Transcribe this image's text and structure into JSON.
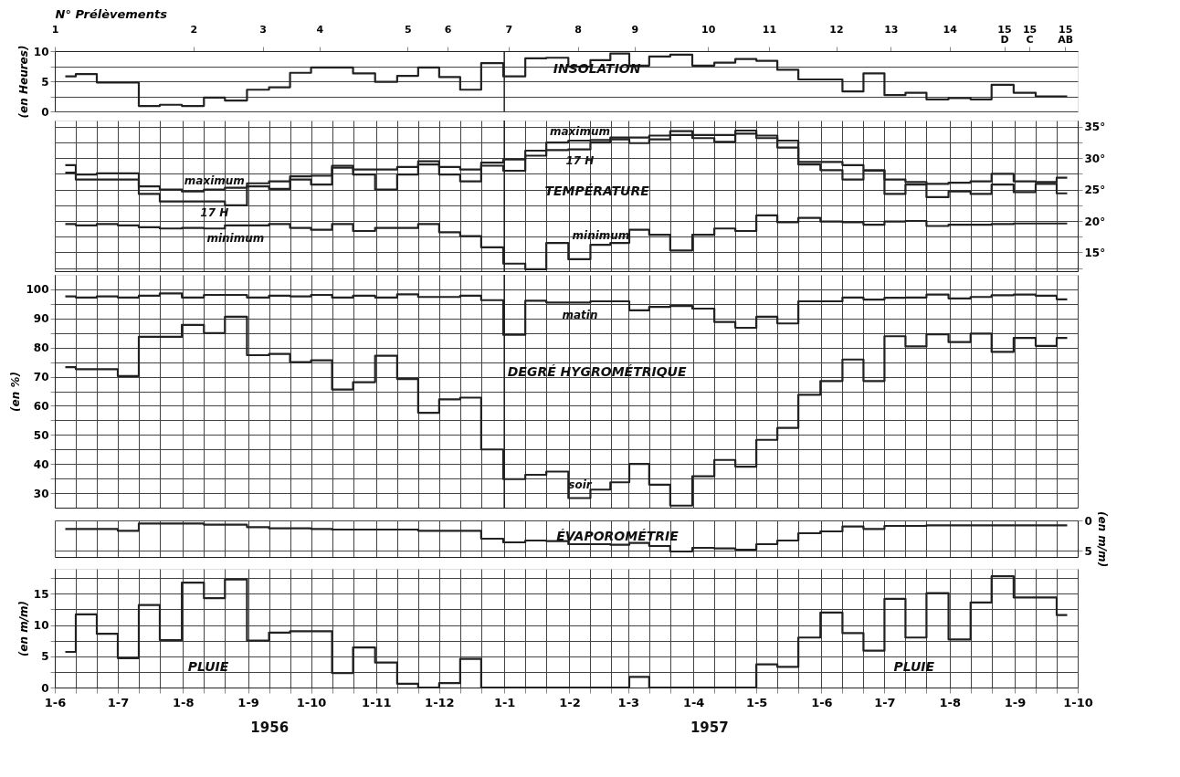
{
  "chart_data": [
    {
      "type": "step",
      "title": "INSOLATION",
      "ylabel": "(en Heures)",
      "xlim": [
        "1956-06-01",
        "1957-10-01"
      ],
      "x2label": "N° Prélèvements",
      "x2lim": [
        "1956-06-01",
        "1957-10-01"
      ],
      "x2ticks": [
        {
          "value": "1956-06-01",
          "label": "1"
        },
        {
          "value": "1956-08-06",
          "label": "2"
        },
        {
          "value": "1956-09-08",
          "label": "3"
        },
        {
          "value": "1956-10-05",
          "label": "4"
        },
        {
          "value": "1956-11-16",
          "label": "5"
        },
        {
          "value": "1956-12-05",
          "label": "6"
        },
        {
          "value": "1957-01-03",
          "label": "7"
        },
        {
          "value": "1957-02-05",
          "label": "8"
        },
        {
          "value": "1957-03-04",
          "label": "9"
        },
        {
          "value": "1957-04-08",
          "label": "10"
        },
        {
          "value": "1957-05-07",
          "label": "11"
        },
        {
          "value": "1957-06-08",
          "label": "12"
        },
        {
          "value": "1957-07-04",
          "label": "13"
        },
        {
          "value": "1957-08-01",
          "label": "14"
        },
        {
          "value": "1957-08-27",
          "label": "15 D"
        },
        {
          "value": "1957-09-08",
          "label": "15 C"
        },
        {
          "value": "1957-09-25",
          "label": "15 AB"
        }
      ],
      "ylim": [
        0,
        10
      ],
      "yticks": [
        0,
        {
          "value": 2.5,
          "label": null
        },
        5,
        {
          "value": 7.5,
          "label": null
        },
        10
      ],
      "tick_labels": "y",
      "grid": "y",
      "x": [
        "1956-06-06",
        "1956-06-16",
        "1956-06-26",
        "1956-07-06",
        "1956-07-16",
        "1956-07-26",
        "1956-08-06",
        "1956-08-16",
        "1956-08-26",
        "1956-09-06",
        "1956-09-16",
        "1956-09-26",
        "1956-10-06",
        "1956-10-16",
        "1956-10-26",
        "1956-11-06",
        "1956-11-16",
        "1956-11-26",
        "1956-12-06",
        "1956-12-16",
        "1956-12-26",
        "1957-01-06",
        "1957-01-16",
        "1957-01-26",
        "1957-02-06",
        "1957-02-16",
        "1957-02-25",
        "1957-03-06",
        "1957-03-16",
        "1957-03-26",
        "1957-04-06",
        "1957-04-16",
        "1957-04-26",
        "1957-05-06",
        "1957-05-16",
        "1957-05-26",
        "1957-06-06",
        "1957-06-16",
        "1957-06-26",
        "1957-07-06",
        "1957-07-16",
        "1957-07-26",
        "1957-08-06",
        "1957-08-16",
        "1957-08-26",
        "1957-09-06",
        "1957-09-16",
        "1957-09-26"
      ],
      "series": [
        {
          "color": "#222222",
          "values": [
            5.8,
            6.2,
            4.8,
            4.8,
            0.9,
            1.1,
            0.9,
            2.3,
            1.8,
            3.6,
            4.0,
            6.4,
            7.3,
            7.3,
            6.3,
            4.9,
            5.9,
            7.3,
            5.7,
            3.6,
            8.0,
            5.8,
            8.8,
            8.9,
            7.4,
            8.5,
            9.6,
            7.6,
            9.1,
            9.4,
            7.6,
            8.1,
            8.7,
            8.4,
            6.9,
            5.3,
            5.3,
            3.3,
            6.3,
            2.7,
            3.1,
            2.0,
            2.2,
            2.0,
            4.4,
            3.1,
            2.5,
            2.5
          ]
        }
      ],
      "ref_lines": [
        {
          "axis": "x",
          "value": "1957-01-01"
        }
      ]
    },
    {
      "type": "step",
      "title": "TEMPÉRATURE",
      "xlim": [
        "1956-06-01",
        "1957-10-01"
      ],
      "y2lim": [
        12,
        36
      ],
      "y2ticks": [
        {
          "value": 12.5,
          "label": null
        },
        {
          "value": 15,
          "label": "15°"
        },
        {
          "value": 17.5,
          "label": null
        },
        {
          "value": 20,
          "label": "20°"
        },
        {
          "value": 22.5,
          "label": null
        },
        {
          "value": 25,
          "label": "25°"
        },
        {
          "value": 27.5,
          "label": null
        },
        {
          "value": 30,
          "label": "30°"
        },
        {
          "value": 32.5,
          "label": null
        },
        {
          "value": 35,
          "label": "35°"
        }
      ],
      "tick_labels": "y2",
      "grid": true,
      "x": [
        "1956-06-06",
        "1956-06-16",
        "1956-06-26",
        "1956-07-06",
        "1956-07-16",
        "1956-07-26",
        "1956-08-06",
        "1956-08-16",
        "1956-08-26",
        "1956-09-06",
        "1956-09-16",
        "1956-09-26",
        "1956-10-06",
        "1956-10-16",
        "1956-10-26",
        "1956-11-06",
        "1956-11-16",
        "1956-11-26",
        "1956-12-06",
        "1956-12-16",
        "1956-12-26",
        "1957-01-06",
        "1957-01-16",
        "1957-01-26",
        "1957-02-06",
        "1957-02-16",
        "1957-02-25",
        "1957-03-06",
        "1957-03-16",
        "1957-03-26",
        "1957-04-06",
        "1957-04-16",
        "1957-04-26",
        "1957-05-06",
        "1957-05-16",
        "1957-05-26",
        "1957-06-06",
        "1957-06-16",
        "1957-06-26",
        "1957-07-06",
        "1957-07-16",
        "1957-07-26",
        "1957-08-06",
        "1957-08-16",
        "1957-08-26",
        "1957-09-06",
        "1957-09-16",
        "1957-09-26"
      ],
      "series": [
        {
          "name": "maximum",
          "axis": "y2",
          "color": "#222222",
          "values": [
            28.9,
            27.4,
            27.6,
            27.6,
            25.5,
            25.0,
            24.7,
            25.0,
            25.3,
            26.0,
            26.3,
            27.1,
            27.2,
            28.8,
            28.2,
            28.2,
            28.6,
            29.5,
            28.6,
            28.2,
            29.3,
            29.8,
            31.2,
            32.5,
            32.8,
            32.9,
            33.3,
            33.3,
            33.6,
            34.3,
            33.7,
            33.7,
            34.4,
            33.6,
            32.8,
            29.4,
            29.4,
            28.9,
            28.1,
            26.6,
            26.2,
            25.9,
            26.1,
            26.3,
            27.5,
            26.3,
            26.2,
            26.9
          ]
        },
        {
          "name": "17 H",
          "axis": "y2",
          "color": "#222222",
          "values": [
            27.7,
            26.6,
            26.6,
            26.6,
            24.3,
            23.1,
            23.1,
            23.1,
            22.5,
            25.5,
            25.1,
            26.6,
            25.8,
            28.5,
            27.4,
            25.0,
            27.4,
            29.0,
            27.4,
            26.3,
            28.8,
            28.0,
            30.4,
            31.3,
            31.4,
            32.5,
            33.0,
            32.4,
            33.0,
            33.7,
            33.2,
            32.6,
            33.9,
            33.2,
            31.7,
            29.0,
            28.1,
            26.6,
            28.0,
            24.3,
            25.8,
            23.8,
            24.7,
            24.3,
            25.8,
            24.6,
            25.9,
            24.4
          ]
        },
        {
          "name": "minimum",
          "axis": "y2",
          "color": "#222222",
          "values": [
            19.5,
            19.3,
            19.5,
            19.3,
            19.0,
            18.8,
            18.9,
            18.8,
            19.3,
            19.3,
            19.5,
            18.9,
            18.6,
            19.5,
            18.4,
            18.9,
            18.9,
            19.5,
            18.2,
            17.6,
            15.8,
            13.2,
            12.3,
            16.5,
            13.9,
            16.2,
            16.5,
            18.6,
            17.8,
            15.3,
            17.8,
            18.8,
            18.4,
            20.9,
            19.8,
            20.5,
            19.9,
            19.8,
            19.4,
            19.9,
            20.0,
            19.2,
            19.4,
            19.4,
            19.5,
            19.6,
            19.6,
            19.6
          ]
        }
      ],
      "ref_lines": [
        {
          "axis": "x",
          "value": "1957-01-01"
        }
      ]
    },
    {
      "type": "step",
      "title": "DEGRÉ HYGROMÉTRIQUE",
      "ylabel": "(en %)",
      "xlim": [
        "1956-06-01",
        "1957-10-01"
      ],
      "ylim": [
        25,
        105
      ],
      "yticks": [
        30,
        {
          "value": 35,
          "label": null
        },
        40,
        {
          "value": 45,
          "label": null
        },
        50,
        {
          "value": 55,
          "label": null
        },
        60,
        {
          "value": 65,
          "label": null
        },
        70,
        {
          "value": 75,
          "label": null
        },
        80,
        {
          "value": 85,
          "label": null
        },
        90,
        {
          "value": 95,
          "label": null
        },
        100
      ],
      "tick_labels": "y",
      "grid": true,
      "x": [
        "1956-06-06",
        "1956-06-16",
        "1956-06-26",
        "1956-07-06",
        "1956-07-16",
        "1956-07-26",
        "1956-08-06",
        "1956-08-16",
        "1956-08-26",
        "1956-09-06",
        "1956-09-16",
        "1956-09-26",
        "1956-10-06",
        "1956-10-16",
        "1956-10-26",
        "1956-11-06",
        "1956-11-16",
        "1956-11-26",
        "1956-12-06",
        "1956-12-16",
        "1956-12-26",
        "1957-01-06",
        "1957-01-16",
        "1957-01-26",
        "1957-02-06",
        "1957-02-16",
        "1957-02-25",
        "1957-03-06",
        "1957-03-16",
        "1957-03-26",
        "1957-04-06",
        "1957-04-16",
        "1957-04-26",
        "1957-05-06",
        "1957-05-16",
        "1957-05-26",
        "1957-06-06",
        "1957-06-16",
        "1957-06-26",
        "1957-07-06",
        "1957-07-16",
        "1957-07-26",
        "1957-08-06",
        "1957-08-16",
        "1957-08-26",
        "1957-09-06",
        "1957-09-16",
        "1957-09-26"
      ],
      "series": [
        {
          "name": "matin",
          "color": "#222222",
          "values": [
            97.6,
            97.2,
            97.6,
            97.2,
            97.8,
            98.6,
            97.2,
            98.1,
            98.1,
            97.2,
            97.8,
            97.6,
            98.1,
            97.2,
            97.8,
            97.2,
            98.3,
            97.4,
            97.4,
            97.8,
            96.3,
            84.4,
            96.1,
            95.5,
            95.5,
            95.9,
            95.9,
            92.8,
            94.0,
            94.3,
            93.4,
            88.8,
            86.8,
            90.6,
            88.3,
            95.9,
            95.9,
            97.2,
            96.5,
            97.1,
            97.2,
            98.2,
            96.9,
            97.4,
            98.0,
            98.2,
            97.8,
            96.6
          ]
        },
        {
          "name": "soir",
          "color": "#222222",
          "values": [
            73.3,
            72.6,
            72.6,
            70.2,
            83.7,
            83.7,
            87.8,
            85.0,
            90.6,
            77.4,
            77.8,
            75.0,
            75.6,
            65.6,
            68.1,
            77.2,
            69.2,
            57.6,
            62.2,
            62.8,
            45.0,
            34.8,
            36.3,
            37.4,
            28.3,
            31.2,
            33.7,
            40.0,
            32.9,
            25.7,
            35.8,
            41.4,
            39.1,
            48.3,
            52.4,
            63.8,
            68.5,
            75.9,
            68.5,
            83.9,
            80.4,
            84.6,
            81.9,
            84.8,
            78.5,
            83.3,
            80.6,
            83.3
          ]
        }
      ],
      "ref_lines": [
        {
          "axis": "x",
          "value": "1957-01-01"
        }
      ]
    },
    {
      "type": "step",
      "title": "ÉVAPOROMÉTRIE",
      "y2label": "(en m/m)",
      "xlim": [
        "1956-06-01",
        "1957-10-01"
      ],
      "y2lim": [
        6,
        0
      ],
      "y2ticks": [
        0,
        5
      ],
      "tick_labels": "y2",
      "grid": true,
      "x": [
        "1956-06-06",
        "1956-06-16",
        "1956-06-26",
        "1956-07-06",
        "1956-07-16",
        "1956-07-26",
        "1956-08-06",
        "1956-08-16",
        "1956-08-26",
        "1956-09-06",
        "1956-09-16",
        "1956-09-26",
        "1956-10-06",
        "1956-10-16",
        "1956-10-26",
        "1956-11-06",
        "1956-11-16",
        "1956-11-26",
        "1956-12-06",
        "1956-12-16",
        "1956-12-26",
        "1957-01-06",
        "1957-01-16",
        "1957-01-26",
        "1957-02-06",
        "1957-02-16",
        "1957-02-25",
        "1957-03-06",
        "1957-03-16",
        "1957-03-26",
        "1957-04-06",
        "1957-04-16",
        "1957-04-26",
        "1957-05-06",
        "1957-05-16",
        "1957-05-26",
        "1957-06-06",
        "1957-06-16",
        "1957-06-26",
        "1957-07-06",
        "1957-07-16",
        "1957-07-26",
        "1957-08-06",
        "1957-08-16",
        "1957-08-26",
        "1957-09-06",
        "1957-09-16",
        "1957-09-26"
      ],
      "series": [
        {
          "axis": "y2",
          "color": "#222222",
          "values": [
            1.4,
            1.4,
            1.4,
            1.7,
            0.5,
            0.5,
            0.5,
            0.7,
            0.7,
            1.1,
            1.3,
            1.3,
            1.4,
            1.5,
            1.5,
            1.5,
            1.5,
            1.7,
            1.7,
            1.7,
            3.0,
            3.6,
            3.3,
            3.4,
            3.9,
            3.9,
            4.0,
            3.7,
            4.2,
            5.1,
            4.5,
            4.6,
            4.8,
            3.9,
            3.3,
            2.1,
            1.8,
            1.0,
            1.4,
            0.9,
            0.9,
            0.8,
            0.8,
            0.8,
            0.8,
            0.8,
            0.8,
            0.8
          ]
        }
      ]
    },
    {
      "type": "step",
      "title": "PLUIE",
      "ylabel": "(en m/m)",
      "xlim": [
        "1956-06-01",
        "1957-10-01"
      ],
      "xticks": [
        {
          "value": "1956-06-01",
          "label": "1-6"
        },
        {
          "value": "1956-06-11",
          "label": null
        },
        {
          "value": "1956-06-21",
          "label": null
        },
        {
          "value": "1956-07-01",
          "label": "1-7"
        },
        {
          "value": "1956-07-11",
          "label": null
        },
        {
          "value": "1956-07-21",
          "label": null
        },
        {
          "value": "1956-08-01",
          "label": "1-8"
        },
        {
          "value": "1956-08-11",
          "label": null
        },
        {
          "value": "1956-08-21",
          "label": null
        },
        {
          "value": "1956-09-01",
          "label": "1-9"
        },
        {
          "value": "1956-09-11",
          "label": null
        },
        {
          "value": "1956-09-21",
          "label": null
        },
        {
          "value": "1956-10-01",
          "label": "1-10"
        },
        {
          "value": "1956-10-11",
          "label": null
        },
        {
          "value": "1956-10-21",
          "label": null
        },
        {
          "value": "1956-11-01",
          "label": "1-11"
        },
        {
          "value": "1956-11-11",
          "label": null
        },
        {
          "value": "1956-11-21",
          "label": null
        },
        {
          "value": "1956-12-01",
          "label": "1-12"
        },
        {
          "value": "1956-12-11",
          "label": null
        },
        {
          "value": "1956-12-21",
          "label": null
        },
        {
          "value": "1957-01-01",
          "label": "1-1"
        },
        {
          "value": "1957-01-11",
          "label": null
        },
        {
          "value": "1957-01-21",
          "label": null
        },
        {
          "value": "1957-02-01",
          "label": "1-2"
        },
        {
          "value": "1957-02-11",
          "label": null
        },
        {
          "value": "1957-02-21",
          "label": null
        },
        {
          "value": "1957-03-01",
          "label": "1-3"
        },
        {
          "value": "1957-03-11",
          "label": null
        },
        {
          "value": "1957-03-21",
          "label": null
        },
        {
          "value": "1957-04-01",
          "label": "1-4"
        },
        {
          "value": "1957-04-11",
          "label": null
        },
        {
          "value": "1957-04-21",
          "label": null
        },
        {
          "value": "1957-05-01",
          "label": "1-5"
        },
        {
          "value": "1957-05-11",
          "label": null
        },
        {
          "value": "1957-05-21",
          "label": null
        },
        {
          "value": "1957-06-01",
          "label": "1-6"
        },
        {
          "value": "1957-06-11",
          "label": null
        },
        {
          "value": "1957-06-21",
          "label": null
        },
        {
          "value": "1957-07-01",
          "label": "1-7"
        },
        {
          "value": "1957-07-11",
          "label": null
        },
        {
          "value": "1957-07-21",
          "label": null
        },
        {
          "value": "1957-08-01",
          "label": "1-8"
        },
        {
          "value": "1957-08-11",
          "label": null
        },
        {
          "value": "1957-08-21",
          "label": null
        },
        {
          "value": "1957-09-01",
          "label": "1-9"
        },
        {
          "value": "1957-09-11",
          "label": null
        },
        {
          "value": "1957-09-21",
          "label": null
        },
        {
          "value": "1957-10-01",
          "label": "1-10"
        }
      ],
      "ylim": [
        0,
        19
      ],
      "yticks": [
        0,
        {
          "value": 2.5,
          "label": null
        },
        5,
        {
          "value": 7.5,
          "label": null
        },
        10,
        {
          "value": 12.5,
          "label": null
        },
        15,
        {
          "value": 17.5,
          "label": null
        }
      ],
      "grid": true,
      "x": [
        "1956-06-06",
        "1956-06-16",
        "1956-06-26",
        "1956-07-06",
        "1956-07-16",
        "1956-07-26",
        "1956-08-06",
        "1956-08-16",
        "1956-08-26",
        "1956-09-06",
        "1956-09-16",
        "1956-09-26",
        "1956-10-06",
        "1956-10-16",
        "1956-10-26",
        "1956-11-06",
        "1956-11-16",
        "1956-11-26",
        "1956-12-06",
        "1956-12-16",
        "1956-12-26",
        "1957-01-06",
        "1957-01-16",
        "1957-01-26",
        "1957-02-06",
        "1957-02-16",
        "1957-02-25",
        "1957-03-06",
        "1957-03-16",
        "1957-03-26",
        "1957-04-06",
        "1957-04-16",
        "1957-04-26",
        "1957-05-06",
        "1957-05-16",
        "1957-05-26",
        "1957-06-06",
        "1957-06-16",
        "1957-06-26",
        "1957-07-06",
        "1957-07-16",
        "1957-07-26",
        "1957-08-06",
        "1957-08-16",
        "1957-08-26",
        "1957-09-06",
        "1957-09-16",
        "1957-09-26"
      ],
      "series": [
        {
          "color": "#222222",
          "values": [
            5.7,
            11.7,
            8.6,
            4.7,
            13.2,
            7.6,
            16.8,
            14.3,
            17.3,
            7.5,
            8.8,
            9.0,
            9.0,
            2.3,
            6.4,
            4.0,
            0.6,
            0,
            0.7,
            4.6,
            0,
            0,
            0,
            0,
            0,
            0,
            0,
            1.7,
            0,
            0,
            0,
            0,
            0,
            3.7,
            3.3,
            8.0,
            12.0,
            8.7,
            5.9,
            14.2,
            8.0,
            15.1,
            7.7,
            13.6,
            17.8,
            14.4,
            14.4,
            11.6
          ]
        }
      ],
      "annotations": [
        "PLUIE",
        "1956",
        "1957"
      ]
    }
  ]
}
